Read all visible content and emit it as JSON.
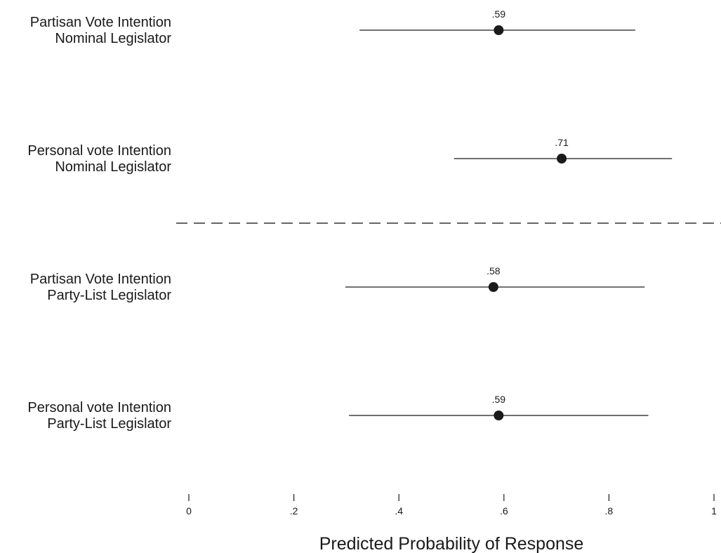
{
  "chart_data": {
    "type": "scatter",
    "xlabel": "Predicted Probability of Response",
    "xlim": [
      0,
      1
    ],
    "xticks": [
      0,
      0.2,
      0.4,
      0.6,
      0.8,
      1
    ],
    "xtick_labels": [
      "0",
      ".2",
      ".4",
      ".6",
      ".8",
      "1"
    ],
    "grid": false,
    "rows": [
      {
        "label_line1": "Partisan Vote Intention",
        "label_line2": "Nominal Legislator",
        "estimate": 0.59,
        "estimate_label": ".59",
        "ci": [
          0.325,
          0.85
        ]
      },
      {
        "label_line1": "Personal vote Intention",
        "label_line2": "Nominal Legislator",
        "estimate": 0.71,
        "estimate_label": ".71",
        "ci": [
          0.505,
          0.92
        ]
      },
      {
        "label_line1": "Partisan Vote Intention",
        "label_line2": "Party-List Legislator",
        "estimate": 0.58,
        "estimate_label": ".58",
        "ci": [
          0.298,
          0.868
        ]
      },
      {
        "label_line1": "Personal vote Intention",
        "label_line2": "Party-List Legislator",
        "estimate": 0.59,
        "estimate_label": ".59",
        "ci": [
          0.305,
          0.875
        ]
      }
    ],
    "separator_after_row": 2
  }
}
